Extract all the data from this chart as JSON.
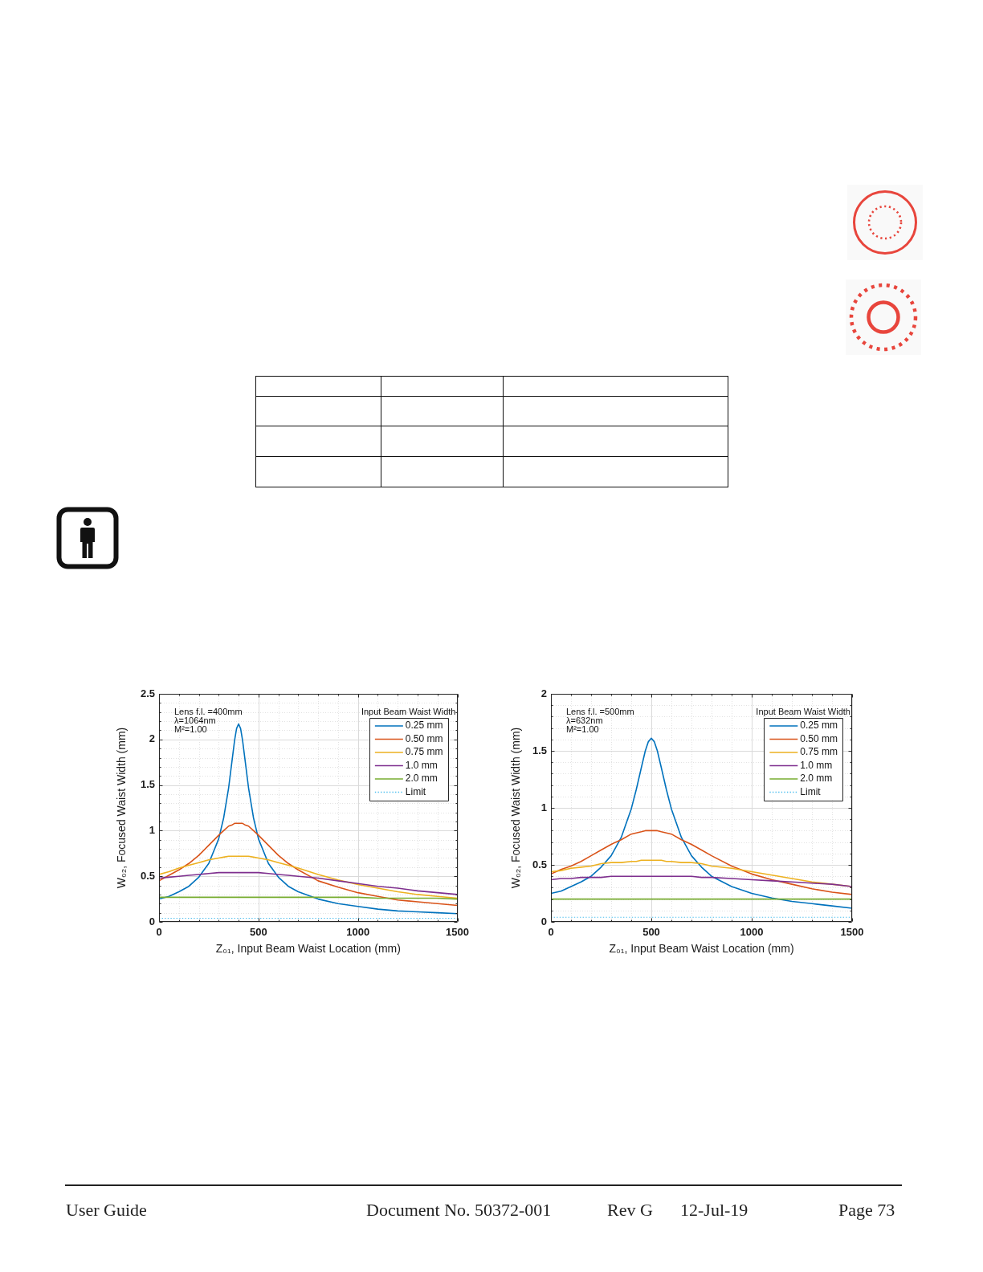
{
  "chart_data": [
    {
      "type": "line",
      "xlabel": "Z₀₁, Input Beam Waist Location (mm)",
      "ylabel": "W₀₂, Focused Waist Width (mm)",
      "legend_title": "Input Beam Waist Width",
      "legend": "top right",
      "grid": true,
      "annotations": [
        "Lens f.l. =400mm",
        "λ=1064nm",
        "M²=1.00"
      ],
      "xlim": [
        0,
        1500
      ],
      "xticks": [
        0,
        {
          "value": 100,
          "label": null
        },
        {
          "value": 200,
          "label": null
        },
        {
          "value": 300,
          "label": null
        },
        {
          "value": 400,
          "label": null
        },
        500,
        {
          "value": 600,
          "label": null
        },
        {
          "value": 700,
          "label": null
        },
        {
          "value": 800,
          "label": null
        },
        {
          "value": 900,
          "label": null
        },
        1000,
        {
          "value": 1100,
          "label": null
        },
        {
          "value": 1200,
          "label": null
        },
        {
          "value": 1300,
          "label": null
        },
        {
          "value": 1400,
          "label": null
        },
        1500
      ],
      "ylim": [
        0,
        2.5
      ],
      "yticks": [
        0,
        {
          "value": 0.1,
          "label": null
        },
        {
          "value": 0.2,
          "label": null
        },
        {
          "value": 0.3,
          "label": null
        },
        {
          "value": 0.4,
          "label": null
        },
        0.5,
        {
          "value": 0.6,
          "label": null
        },
        {
          "value": 0.7,
          "label": null
        },
        {
          "value": 0.8,
          "label": null
        },
        {
          "value": 0.9,
          "label": null
        },
        1,
        {
          "value": 1.1,
          "label": null
        },
        {
          "value": 1.2,
          "label": null
        },
        {
          "value": 1.3,
          "label": null
        },
        {
          "value": 1.4,
          "label": null
        },
        1.5,
        {
          "value": 1.6,
          "label": null
        },
        {
          "value": 1.7,
          "label": null
        },
        {
          "value": 1.8,
          "label": null
        },
        {
          "value": 1.9,
          "label": null
        },
        2,
        {
          "value": 2.1,
          "label": null
        },
        {
          "value": 2.2,
          "label": null
        },
        {
          "value": 2.3,
          "label": null
        },
        {
          "value": 2.4,
          "label": null
        },
        2.5
      ],
      "x": [
        0,
        50,
        100,
        150,
        200,
        250,
        300,
        325,
        350,
        365,
        380,
        390,
        400,
        410,
        420,
        435,
        450,
        475,
        500,
        550,
        600,
        650,
        700,
        800,
        900,
        1000,
        1100,
        1200,
        1300,
        1400,
        1500
      ],
      "series": [
        {
          "name": "0.25 mm",
          "color": "#0072bd",
          "values": [
            0.25,
            0.28,
            0.33,
            0.39,
            0.49,
            0.64,
            0.91,
            1.14,
            1.47,
            1.73,
            1.99,
            2.12,
            2.17,
            2.12,
            1.99,
            1.73,
            1.47,
            1.14,
            0.91,
            0.64,
            0.49,
            0.39,
            0.33,
            0.25,
            0.2,
            0.17,
            0.14,
            0.12,
            0.11,
            0.1,
            0.09
          ]
        },
        {
          "name": "0.50 mm",
          "color": "#d95319",
          "values": [
            0.45,
            0.51,
            0.57,
            0.64,
            0.73,
            0.84,
            0.95,
            1.0,
            1.05,
            1.06,
            1.08,
            1.08,
            1.08,
            1.08,
            1.08,
            1.06,
            1.05,
            1.0,
            0.95,
            0.84,
            0.73,
            0.64,
            0.57,
            0.45,
            0.38,
            0.32,
            0.28,
            0.24,
            0.22,
            0.2,
            0.18
          ]
        },
        {
          "name": "0.75 mm",
          "color": "#edb120",
          "values": [
            0.52,
            0.55,
            0.59,
            0.62,
            0.65,
            0.68,
            0.7,
            0.71,
            0.72,
            0.72,
            0.72,
            0.72,
            0.72,
            0.72,
            0.72,
            0.72,
            0.72,
            0.71,
            0.7,
            0.68,
            0.65,
            0.62,
            0.59,
            0.52,
            0.46,
            0.41,
            0.37,
            0.33,
            0.3,
            0.28,
            0.26
          ]
        },
        {
          "name": "1.0 mm",
          "color": "#7e2f8e",
          "values": [
            0.48,
            0.49,
            0.5,
            0.51,
            0.52,
            0.53,
            0.54,
            0.54,
            0.54,
            0.54,
            0.54,
            0.54,
            0.54,
            0.54,
            0.54,
            0.54,
            0.54,
            0.54,
            0.54,
            0.53,
            0.52,
            0.51,
            0.5,
            0.48,
            0.45,
            0.42,
            0.39,
            0.37,
            0.34,
            0.32,
            0.3
          ]
        },
        {
          "name": "2.0 mm",
          "color": "#77ac30",
          "values": [
            0.27,
            0.27,
            0.27,
            0.27,
            0.27,
            0.27,
            0.27,
            0.27,
            0.27,
            0.27,
            0.27,
            0.27,
            0.27,
            0.27,
            0.27,
            0.27,
            0.27,
            0.27,
            0.27,
            0.27,
            0.27,
            0.27,
            0.27,
            0.27,
            0.27,
            0.27,
            0.26,
            0.26,
            0.26,
            0.26,
            0.25
          ]
        },
        {
          "name": "Limit",
          "color": "#4dbeee",
          "line_style": "dotted",
          "values": [
            0.04,
            0.04,
            0.04,
            0.04,
            0.04,
            0.04,
            0.04,
            0.04,
            0.04,
            0.04,
            0.04,
            0.04,
            0.04,
            0.04,
            0.04,
            0.04,
            0.04,
            0.04,
            0.04,
            0.04,
            0.04,
            0.04,
            0.04,
            0.04,
            0.04,
            0.04,
            0.04,
            0.04,
            0.04,
            0.04,
            0.04
          ]
        }
      ]
    },
    {
      "type": "line",
      "xlabel": "Z₀₁, Input Beam Waist Location (mm)",
      "ylabel": "W₀₂, Focused Waist Width (mm)",
      "legend_title": "Input Beam Waist Width",
      "legend": "top right",
      "grid": true,
      "annotations": [
        "Lens f.l. =500mm",
        "λ=632nm",
        "M²=1.00"
      ],
      "xlim": [
        0,
        1500
      ],
      "xticks": [
        0,
        {
          "value": 100,
          "label": null
        },
        {
          "value": 200,
          "label": null
        },
        {
          "value": 300,
          "label": null
        },
        {
          "value": 400,
          "label": null
        },
        500,
        {
          "value": 600,
          "label": null
        },
        {
          "value": 700,
          "label": null
        },
        {
          "value": 800,
          "label": null
        },
        {
          "value": 900,
          "label": null
        },
        1000,
        {
          "value": 1100,
          "label": null
        },
        {
          "value": 1200,
          "label": null
        },
        {
          "value": 1300,
          "label": null
        },
        {
          "value": 1400,
          "label": null
        },
        1500
      ],
      "ylim": [
        0,
        2
      ],
      "yticks": [
        0,
        {
          "value": 0.1,
          "label": null
        },
        {
          "value": 0.2,
          "label": null
        },
        {
          "value": 0.3,
          "label": null
        },
        {
          "value": 0.4,
          "label": null
        },
        0.5,
        {
          "value": 0.6,
          "label": null
        },
        {
          "value": 0.7,
          "label": null
        },
        {
          "value": 0.8,
          "label": null
        },
        {
          "value": 0.9,
          "label": null
        },
        1,
        {
          "value": 1.1,
          "label": null
        },
        {
          "value": 1.2,
          "label": null
        },
        {
          "value": 1.3,
          "label": null
        },
        {
          "value": 1.4,
          "label": null
        },
        1.5,
        {
          "value": 1.6,
          "label": null
        },
        {
          "value": 1.7,
          "label": null
        },
        {
          "value": 1.8,
          "label": null
        },
        {
          "value": 1.9,
          "label": null
        },
        2
      ],
      "x": [
        0,
        50,
        100,
        150,
        200,
        250,
        300,
        350,
        400,
        425,
        450,
        470,
        485,
        500,
        515,
        530,
        550,
        575,
        600,
        650,
        700,
        750,
        800,
        900,
        1000,
        1100,
        1200,
        1300,
        1400,
        1500
      ],
      "series": [
        {
          "name": "0.25 mm",
          "color": "#0072bd",
          "values": [
            0.25,
            0.27,
            0.31,
            0.35,
            0.4,
            0.48,
            0.58,
            0.74,
            0.99,
            1.16,
            1.35,
            1.5,
            1.58,
            1.61,
            1.58,
            1.5,
            1.35,
            1.16,
            0.99,
            0.74,
            0.58,
            0.48,
            0.4,
            0.31,
            0.25,
            0.21,
            0.18,
            0.16,
            0.14,
            0.12
          ]
        },
        {
          "name": "0.50 mm",
          "color": "#d95319",
          "values": [
            0.42,
            0.46,
            0.49,
            0.53,
            0.58,
            0.63,
            0.68,
            0.72,
            0.77,
            0.78,
            0.79,
            0.8,
            0.8,
            0.8,
            0.8,
            0.8,
            0.79,
            0.78,
            0.77,
            0.72,
            0.68,
            0.63,
            0.58,
            0.49,
            0.42,
            0.37,
            0.33,
            0.29,
            0.26,
            0.24
          ]
        },
        {
          "name": "0.75 mm",
          "color": "#edb120",
          "values": [
            0.44,
            0.45,
            0.47,
            0.48,
            0.49,
            0.51,
            0.52,
            0.52,
            0.53,
            0.53,
            0.54,
            0.54,
            0.54,
            0.54,
            0.54,
            0.54,
            0.54,
            0.53,
            0.53,
            0.52,
            0.52,
            0.51,
            0.49,
            0.47,
            0.44,
            0.41,
            0.38,
            0.35,
            0.33,
            0.31
          ]
        },
        {
          "name": "1.0 mm",
          "color": "#7e2f8e",
          "values": [
            0.37,
            0.38,
            0.38,
            0.39,
            0.39,
            0.39,
            0.4,
            0.4,
            0.4,
            0.4,
            0.4,
            0.4,
            0.4,
            0.4,
            0.4,
            0.4,
            0.4,
            0.4,
            0.4,
            0.4,
            0.4,
            0.39,
            0.39,
            0.38,
            0.37,
            0.36,
            0.35,
            0.34,
            0.33,
            0.31
          ]
        },
        {
          "name": "2.0 mm",
          "color": "#77ac30",
          "values": [
            0.2,
            0.2,
            0.2,
            0.2,
            0.2,
            0.2,
            0.2,
            0.2,
            0.2,
            0.2,
            0.2,
            0.2,
            0.2,
            0.2,
            0.2,
            0.2,
            0.2,
            0.2,
            0.2,
            0.2,
            0.2,
            0.2,
            0.2,
            0.2,
            0.2,
            0.2,
            0.2,
            0.2,
            0.2,
            0.2
          ]
        },
        {
          "name": "Limit",
          "color": "#4dbeee",
          "line_style": "dotted",
          "values": [
            0.04,
            0.04,
            0.04,
            0.04,
            0.04,
            0.04,
            0.04,
            0.04,
            0.04,
            0.04,
            0.04,
            0.04,
            0.04,
            0.04,
            0.04,
            0.04,
            0.04,
            0.04,
            0.04,
            0.04,
            0.04,
            0.04,
            0.04,
            0.04,
            0.04,
            0.04,
            0.04,
            0.04,
            0.04,
            0.04
          ]
        }
      ]
    },
    {
      "type": "other",
      "annotations": [
        "User Guide",
        "Document No. 50372-001",
        "Rev G",
        "12-Jul-19",
        "Page 73"
      ]
    }
  ]
}
